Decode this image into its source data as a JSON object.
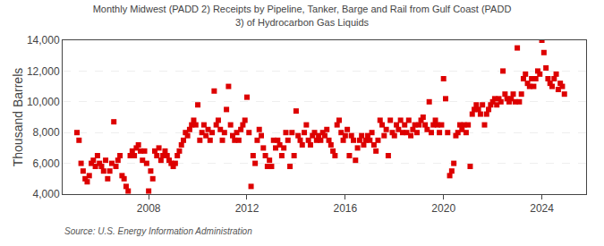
{
  "chart_data": {
    "type": "scatter",
    "title": "Monthly Midwest (PADD 2) Receipts by Pipeline, Tanker, Barge and Rail from Gulf Coast (PADD\n3) of Hydrocarbon Gas Liquids",
    "ylabel": "Thousand Barrels",
    "annotations": [
      "Source: U.S. Energy Information Administration"
    ],
    "color": "#dd0000",
    "marker": "square",
    "grid": true,
    "xlim": [
      2004.5,
      2025.8
    ],
    "xticks": [
      2008,
      2012,
      2016,
      2020,
      2024
    ],
    "ylim": [
      4000,
      14000
    ],
    "yticks": [
      {
        "value": 4000,
        "label": "4,000"
      },
      {
        "value": 6000,
        "label": "6,000"
      },
      {
        "value": 8000,
        "label": "8,000"
      },
      {
        "value": 10000,
        "label": "10,000"
      },
      {
        "value": 12000,
        "label": "12,000"
      },
      {
        "value": 14000,
        "label": "14,000"
      }
    ],
    "x": [
      2005.083,
      2005.167,
      2005.25,
      2005.333,
      2005.417,
      2005.5,
      2005.583,
      2005.667,
      2005.75,
      2005.833,
      2005.917,
      2006.0,
      2006.083,
      2006.167,
      2006.25,
      2006.333,
      2006.417,
      2006.5,
      2006.583,
      2006.667,
      2006.75,
      2006.833,
      2006.917,
      2007.0,
      2007.083,
      2007.167,
      2007.25,
      2007.333,
      2007.417,
      2007.5,
      2007.583,
      2007.667,
      2007.75,
      2007.833,
      2007.917,
      2008.0,
      2008.083,
      2008.167,
      2008.25,
      2008.333,
      2008.417,
      2008.5,
      2008.583,
      2008.667,
      2008.75,
      2008.833,
      2008.917,
      2009.0,
      2009.083,
      2009.167,
      2009.25,
      2009.333,
      2009.417,
      2009.5,
      2009.583,
      2009.667,
      2009.75,
      2009.833,
      2009.917,
      2010.0,
      2010.083,
      2010.167,
      2010.25,
      2010.333,
      2010.417,
      2010.5,
      2010.583,
      2010.667,
      2010.75,
      2010.833,
      2010.917,
      2011.0,
      2011.083,
      2011.167,
      2011.25,
      2011.333,
      2011.417,
      2011.5,
      2011.583,
      2011.667,
      2011.75,
      2011.833,
      2011.917,
      2012.0,
      2012.083,
      2012.167,
      2012.25,
      2012.333,
      2012.417,
      2012.5,
      2012.583,
      2012.667,
      2012.75,
      2012.833,
      2012.917,
      2013.0,
      2013.083,
      2013.167,
      2013.25,
      2013.333,
      2013.417,
      2013.5,
      2013.583,
      2013.667,
      2013.75,
      2013.833,
      2013.917,
      2014.0,
      2014.083,
      2014.167,
      2014.25,
      2014.333,
      2014.417,
      2014.5,
      2014.583,
      2014.667,
      2014.75,
      2014.833,
      2014.917,
      2015.0,
      2015.083,
      2015.167,
      2015.25,
      2015.333,
      2015.417,
      2015.5,
      2015.583,
      2015.667,
      2015.75,
      2015.833,
      2015.917,
      2016.0,
      2016.083,
      2016.167,
      2016.25,
      2016.333,
      2016.417,
      2016.5,
      2016.583,
      2016.667,
      2016.75,
      2016.833,
      2016.917,
      2017.0,
      2017.083,
      2017.167,
      2017.25,
      2017.333,
      2017.417,
      2017.5,
      2017.583,
      2017.667,
      2017.75,
      2017.833,
      2017.917,
      2018.0,
      2018.083,
      2018.167,
      2018.25,
      2018.333,
      2018.417,
      2018.5,
      2018.583,
      2018.667,
      2018.75,
      2018.833,
      2018.917,
      2019.0,
      2019.083,
      2019.167,
      2019.25,
      2019.333,
      2019.417,
      2019.5,
      2019.583,
      2019.667,
      2019.75,
      2019.833,
      2019.917,
      2020.0,
      2020.083,
      2020.167,
      2020.25,
      2020.333,
      2020.417,
      2020.5,
      2020.583,
      2020.667,
      2020.75,
      2020.833,
      2020.917,
      2021.0,
      2021.083,
      2021.167,
      2021.25,
      2021.333,
      2021.417,
      2021.5,
      2021.583,
      2021.667,
      2021.75,
      2021.833,
      2021.917,
      2022.0,
      2022.083,
      2022.167,
      2022.25,
      2022.333,
      2022.417,
      2022.5,
      2022.583,
      2022.667,
      2022.75,
      2022.833,
      2022.917,
      2023.0,
      2023.083,
      2023.167,
      2023.25,
      2023.333,
      2023.417,
      2023.5,
      2023.583,
      2023.667,
      2023.75,
      2023.833,
      2023.917,
      2024.0,
      2024.083,
      2024.167,
      2024.25,
      2024.333,
      2024.417,
      2024.5,
      2024.583,
      2024.667,
      2024.75,
      2024.833,
      2024.917
    ],
    "values": [
      8000,
      7500,
      6000,
      5500,
      5000,
      4800,
      5200,
      6000,
      6200,
      5800,
      6500,
      6000,
      5800,
      5500,
      6200,
      5000,
      5500,
      6000,
      8700,
      5800,
      6200,
      6500,
      5200,
      5000,
      4500,
      4200,
      6500,
      6800,
      6500,
      7000,
      7200,
      6800,
      6200,
      6800,
      6000,
      4200,
      5500,
      5000,
      6800,
      6500,
      7000,
      6200,
      6500,
      6800,
      6500,
      6200,
      6000,
      5800,
      6000,
      6500,
      6800,
      7200,
      7500,
      8000,
      7800,
      8200,
      8500,
      8800,
      8500,
      9800,
      7500,
      8000,
      8500,
      7800,
      8200,
      7500,
      8000,
      10700,
      8500,
      8800,
      8200,
      7500,
      8000,
      9500,
      11000,
      8500,
      7800,
      7500,
      8000,
      7500,
      8200,
      8500,
      8800,
      10300,
      8000,
      4500,
      6500,
      6000,
      7500,
      8200,
      7800,
      7000,
      6500,
      5800,
      6200,
      5800,
      7500,
      7000,
      7500,
      7200,
      6500,
      7000,
      8000,
      7500,
      5800,
      8000,
      6500,
      9400,
      7800,
      7500,
      7200,
      8000,
      8500,
      7500,
      7200,
      7800,
      8000,
      7500,
      7800,
      7500,
      8000,
      7800,
      8200,
      7500,
      7200,
      6800,
      6500,
      8500,
      8800,
      8000,
      7500,
      7800,
      8200,
      6500,
      7800,
      7500,
      6200,
      7000,
      7500,
      7800,
      7200,
      7500,
      7800,
      7500,
      8000,
      7200,
      6800,
      7500,
      8800,
      8500,
      7800,
      8200,
      6500,
      8800,
      8000,
      7800,
      8500,
      8200,
      8800,
      8000,
      8500,
      8000,
      8800,
      7800,
      8200,
      8500,
      8000,
      8500,
      8800,
      9000,
      8500,
      8200,
      10000,
      8000,
      8500,
      8800,
      8500,
      8000,
      8500,
      11500,
      10200,
      8000,
      5200,
      5500,
      6000,
      7800,
      8000,
      8500,
      8200,
      8500,
      8000,
      8500,
      5800,
      9200,
      9500,
      9800,
      9500,
      9200,
      9800,
      8500,
      9200,
      9500,
      9800,
      10000,
      10200,
      9800,
      10200,
      10000,
      12000,
      10500,
      10200,
      10000,
      10200,
      10500,
      10000,
      13500,
      10000,
      10500,
      11500,
      11800,
      11200,
      11000,
      11500,
      11000,
      11500,
      12000,
      11800,
      14000,
      13200,
      12200,
      11500,
      11200,
      11000,
      11500,
      11800,
      10800,
      11200,
      11000,
      10500
    ]
  }
}
